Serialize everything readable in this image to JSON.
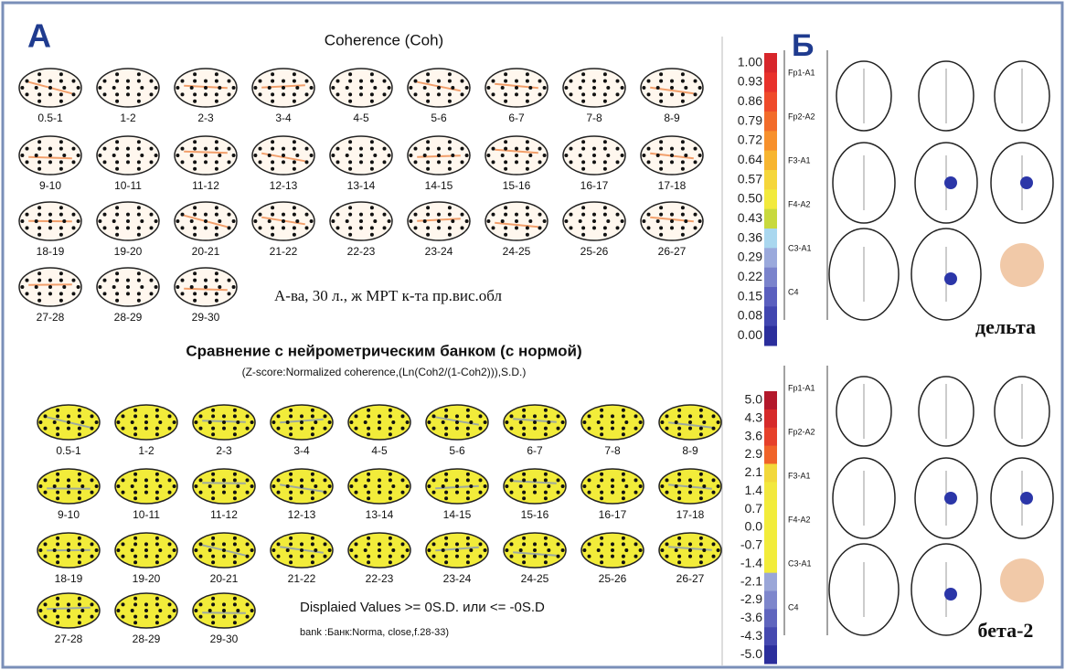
{
  "panel_a": {
    "label": "А",
    "coherence": {
      "title": "Coherence (Coh)",
      "maps": [
        "0.5-1",
        "1-2",
        "2-3",
        "3-4",
        "4-5",
        "5-6",
        "6-7",
        "7-8",
        "8-9",
        "9-10",
        "10-11",
        "11-12",
        "12-13",
        "13-14",
        "14-15",
        "15-16",
        "16-17",
        "17-18",
        "18-19",
        "19-20",
        "20-21",
        "21-22",
        "22-23",
        "23-24",
        "24-25",
        "25-26",
        "26-27",
        "27-28",
        "28-29",
        "29-30"
      ],
      "note": "А-ва, 30 л., ж  МРТ к-та пр.вис.обл",
      "scale": [
        "1.00",
        "0.93",
        "0.86",
        "0.79",
        "0.72",
        "0.64",
        "0.57",
        "0.50",
        "0.43",
        "0.36",
        "0.29",
        "0.22",
        "0.15",
        "0.08",
        "0.00"
      ]
    },
    "comparison": {
      "title": "Сравнение с нейрометрическим банком (с нормой)",
      "subtitle": "(Z-score:Normalized coherence,(Ln(Coh2/(1-Coh2))),S.D.)",
      "maps": [
        "0.5-1",
        "1-2",
        "2-3",
        "3-4",
        "4-5",
        "5-6",
        "6-7",
        "7-8",
        "8-9",
        "9-10",
        "10-11",
        "11-12",
        "12-13",
        "13-14",
        "14-15",
        "15-16",
        "16-17",
        "17-18",
        "18-19",
        "19-20",
        "20-21",
        "21-22",
        "22-23",
        "23-24",
        "24-25",
        "25-26",
        "26-27",
        "27-28",
        "28-29",
        "29-30"
      ],
      "displayed": "Displaied Values >=    0S.D. или <=   -0S.D",
      "bank": "bank :Банк:Norma, close,f.28-33)",
      "scale": [
        "5.0",
        "4.3",
        "3.6",
        "2.9",
        "2.1",
        "1.4",
        "0.7",
        "0.0",
        "-0.7",
        "-1.4",
        "-2.1",
        "-2.9",
        "-3.6",
        "-4.3",
        "-5.0"
      ]
    }
  },
  "panel_b": {
    "label": "Б",
    "delta": {
      "channels": [
        "Fp1-A1",
        "Fp2-A2",
        "F3-A1",
        "F4-A2",
        "C3-A1",
        "C4"
      ],
      "caption": "дельта"
    },
    "beta2": {
      "channels": [
        "Fp1-A1",
        "Fp2-A2",
        "F3-A1",
        "F4-A2",
        "C3-A1",
        "C4"
      ],
      "caption": "бета-2"
    }
  }
}
